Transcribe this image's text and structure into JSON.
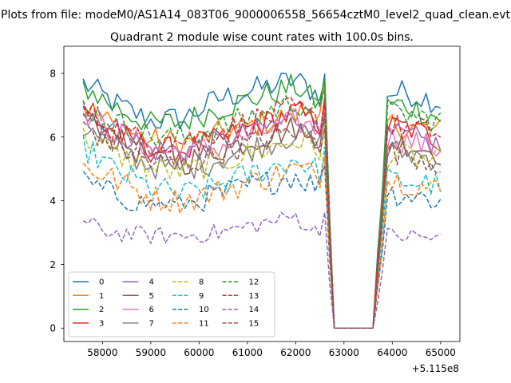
{
  "figure": {
    "suptitle": "Plots from file: modeM0/AS1A14_083T06_9000006558_56654cztM0_level2_quad_clean.evt"
  },
  "chart_data": {
    "type": "line",
    "title": "Quadrant 2 module wise count rates with 100.0s bins.",
    "xlabel": "",
    "ylabel": "",
    "x_offset_label": "+5.115e8",
    "xlim": [
      57200,
      65400
    ],
    "ylim": [
      -0.42,
      8.85
    ],
    "xticks": [
      58000,
      59000,
      60000,
      61000,
      62000,
      63000,
      64000,
      65000
    ],
    "xtick_labels": [
      "58000",
      "59000",
      "60000",
      "61000",
      "62000",
      "63000",
      "64000",
      "65000"
    ],
    "yticks": [
      0,
      2,
      4,
      6,
      8
    ],
    "ytick_labels": [
      "0",
      "2",
      "4",
      "6",
      "8"
    ],
    "grid": false,
    "legend_position": "lower-left",
    "legend_columns": 4,
    "x_range": [
      57600,
      65000
    ],
    "x_step": 100,
    "gap": {
      "drop_start": 62600,
      "zero_from": 62800,
      "zero_to": 63600,
      "recover_end": 63900
    },
    "series": [
      {
        "name": "0",
        "color": "#1f77b4",
        "style": "solid",
        "levels": [
          7.7,
          7.1,
          6.5,
          6.6,
          7.2,
          7.8,
          7.3,
          7.4,
          7.1
        ]
      },
      {
        "name": "1",
        "color": "#ff7f0e",
        "style": "solid",
        "levels": [
          7.0,
          6.4,
          5.9,
          5.8,
          6.1,
          6.7,
          6.9,
          6.3,
          6.2
        ]
      },
      {
        "name": "2",
        "color": "#2ca02c",
        "style": "solid",
        "levels": [
          7.6,
          7.0,
          6.4,
          6.5,
          6.9,
          7.6,
          7.0,
          7.0,
          6.6
        ]
      },
      {
        "name": "3",
        "color": "#d62728",
        "style": "solid",
        "levels": [
          6.8,
          6.2,
          5.6,
          5.6,
          5.9,
          6.8,
          6.4,
          6.3,
          5.9
        ]
      },
      {
        "name": "4",
        "color": "#9467bd",
        "style": "solid",
        "levels": [
          6.9,
          6.3,
          5.6,
          5.6,
          5.8,
          6.6,
          6.1,
          6.0,
          5.7
        ]
      },
      {
        "name": "5",
        "color": "#8c564b",
        "style": "solid",
        "levels": [
          6.6,
          6.0,
          5.3,
          5.2,
          5.6,
          6.3,
          6.0,
          5.8,
          5.5
        ]
      },
      {
        "name": "6",
        "color": "#e377c2",
        "style": "solid",
        "levels": [
          6.8,
          6.2,
          5.6,
          5.5,
          5.7,
          6.5,
          6.2,
          5.9,
          5.6
        ]
      },
      {
        "name": "7",
        "color": "#7f7f7f",
        "style": "solid",
        "levels": [
          6.3,
          5.7,
          5.1,
          5.0,
          5.3,
          6.1,
          5.7,
          5.5,
          5.3
        ]
      },
      {
        "name": "8",
        "color": "#bcbd22",
        "style": "dashed",
        "levels": [
          6.0,
          5.5,
          5.0,
          4.9,
          5.2,
          5.9,
          5.6,
          5.4,
          5.2
        ]
      },
      {
        "name": "9",
        "color": "#17becf",
        "style": "dashed",
        "levels": [
          5.7,
          5.0,
          4.4,
          4.2,
          4.5,
          5.3,
          4.9,
          4.6,
          4.5
        ]
      },
      {
        "name": "10",
        "color": "#1f77b4",
        "style": "dashed",
        "levels": [
          4.6,
          4.2,
          3.9,
          3.9,
          4.2,
          4.8,
          4.4,
          4.2,
          4.0
        ]
      },
      {
        "name": "11",
        "color": "#ff7f0e",
        "style": "dashed",
        "levels": [
          5.1,
          4.7,
          4.1,
          4.0,
          4.3,
          5.0,
          4.8,
          4.6,
          4.3
        ]
      },
      {
        "name": "12",
        "color": "#2ca02c",
        "style": "dashed",
        "levels": [
          7.0,
          6.5,
          6.0,
          6.0,
          6.3,
          7.1,
          6.8,
          6.7,
          6.5
        ]
      },
      {
        "name": "13",
        "color": "#d62728",
        "style": "dashed",
        "levels": [
          6.9,
          6.3,
          5.8,
          5.9,
          6.2,
          6.9,
          6.4,
          6.3,
          6.1
        ]
      },
      {
        "name": "14",
        "color": "#9467bd",
        "style": "dashed",
        "levels": [
          3.3,
          3.0,
          2.9,
          2.9,
          3.0,
          3.5,
          2.9,
          2.9,
          2.8
        ]
      },
      {
        "name": "15",
        "color": "#8c564b",
        "style": "dashed",
        "levels": [
          6.4,
          5.8,
          5.2,
          5.1,
          5.5,
          6.2,
          5.7,
          5.5,
          5.2
        ]
      }
    ]
  }
}
